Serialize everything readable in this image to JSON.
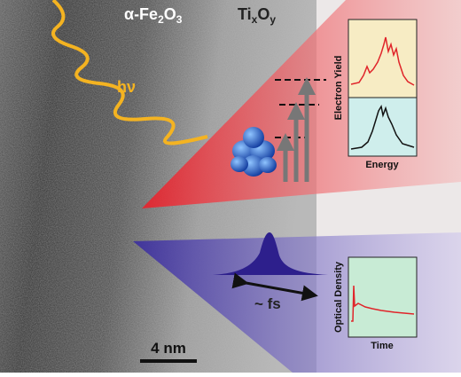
{
  "materials": [
    {
      "parts": [
        "α-Fe",
        "2",
        "O",
        "3"
      ]
    },
    {
      "parts": [
        "Ti",
        "x",
        "O",
        "y"
      ]
    }
  ],
  "photon_label": "hν",
  "electron_panel": {
    "y_label": "Electron Yield",
    "x_label": "Energy"
  },
  "optical_panel": {
    "y_label": "Optical Density",
    "x_label": "Time"
  },
  "pulse_label": "~ fs",
  "scale_bar": "4 nm"
}
